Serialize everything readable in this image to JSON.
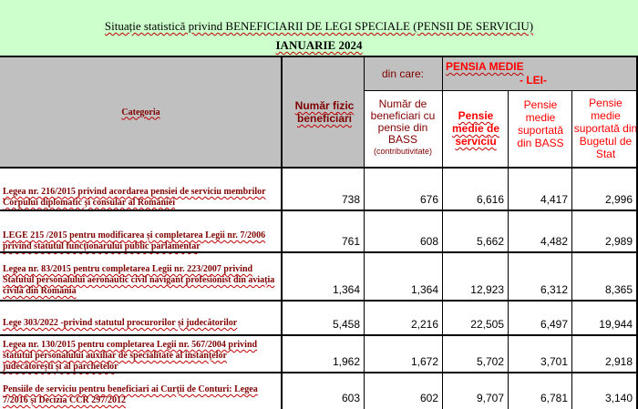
{
  "header": {
    "title_line1": "Situație statistică privind BENEFICIARII DE LEGI SPECIALE (PENSII DE SERVICIU)",
    "title_line2": "IANUARIE  2024"
  },
  "columns": {
    "categoria": "Categoria",
    "numar_fizic": "Număr fizic beneficiari",
    "din_care": "din care:",
    "numar_bass_l1": "Număr de beneficiari cu pensie din BASS",
    "numar_bass_l2": "(contributivitate)",
    "pensia_medie": "PENSIA MEDIE",
    "lei": "- LEI-",
    "pensie_medie_serviciu": "Pensie medie de serviciu",
    "pensie_bass": "Pensie medie suportată din BASS",
    "pensie_buget": "Pensie medie suportată din Bugetul de Stat"
  },
  "rows": [
    {
      "label": "Legea nr. 216/2015 privind acordarea pensiei de serviciu membrilor Corpului diplomatic și consular al României",
      "values": [
        "738",
        "676",
        "6,616",
        "4,417",
        "2,996"
      ]
    },
    {
      "label": "LEGE 215 /2015  pentru modificarea și completarea Legii nr. 7/2006 privind statutul funcționarului public parlamentar",
      "values": [
        "761",
        "608",
        "5,662",
        "4,482",
        "2,989"
      ]
    },
    {
      "label": " Legea nr. 83/2015 pentru completarea Legii nr. 223/2007 privind Statutul personalului aeronautic civil navigant profesionist din aviația civilă din România",
      "values": [
        "1,364",
        "1,364",
        "12,923",
        "6,312",
        "8,365"
      ]
    },
    {
      "label": "Lege 303/2022 -privind statutul procurorilor și judecătorilor",
      "values": [
        "5,458",
        "2,216",
        "22,505",
        "6,497",
        "19,944"
      ]
    },
    {
      "label": "Legea nr. 130/2015 pentru completarea Legii nr. 567/2004 privind statutul personalului auxiliar de specialitate al instanțelor judecătorești și al parchetelor",
      "values": [
        "1,962",
        "1,672",
        "5,702",
        "3,701",
        "2,918"
      ]
    },
    {
      "label": "Pensiile de serviciu pentru beneficiari ai Curții de Conturi: Legea 7/2016 și  Decizia CCR 297/2012",
      "values": [
        "603",
        "602",
        "9,707",
        "6,781",
        "3,140"
      ]
    }
  ]
}
